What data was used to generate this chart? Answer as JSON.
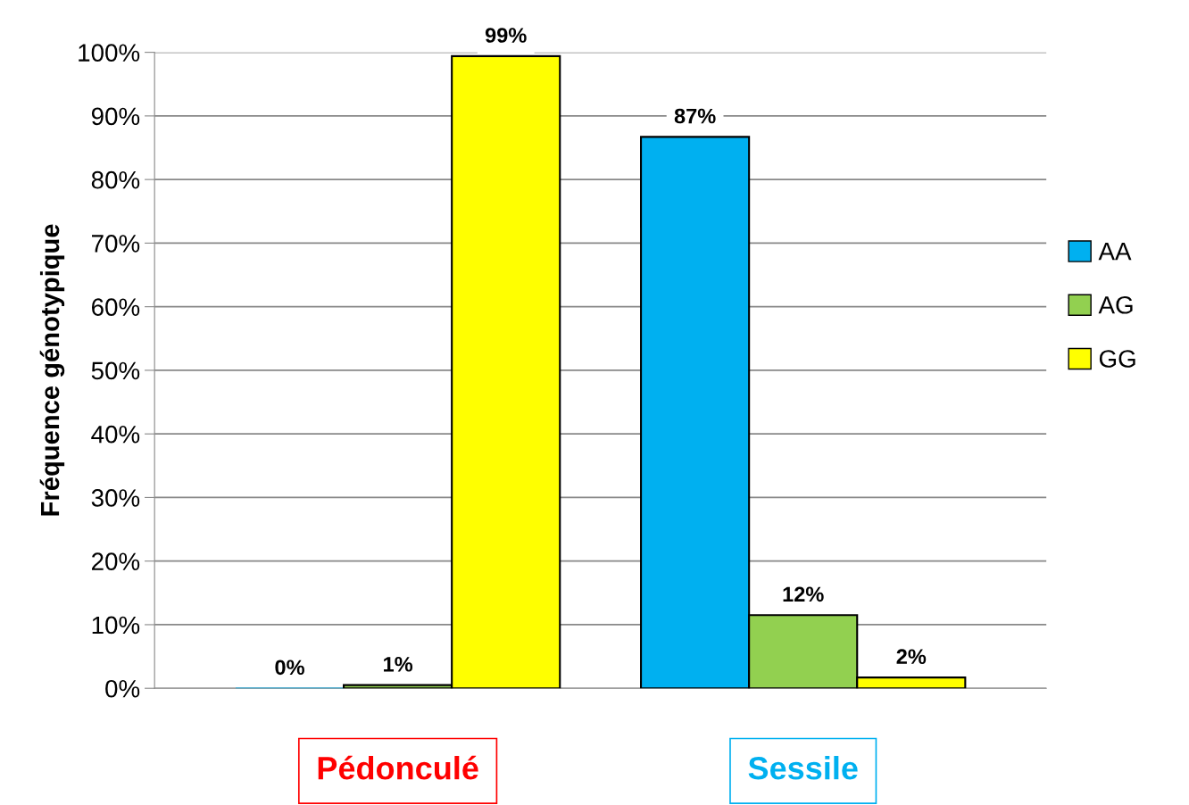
{
  "chart_data": {
    "type": "bar",
    "ylabel": "Fréquence génotypique",
    "categories": [
      "Pédonculé",
      "Sessile"
    ],
    "series": [
      {
        "name": "AA",
        "color": "#00b0f0",
        "values": [
          0,
          86.7
        ],
        "value_labels": [
          "0%",
          "87%"
        ]
      },
      {
        "name": "AG",
        "color": "#92d050",
        "values": [
          0.5,
          11.5
        ],
        "value_labels": [
          "1%",
          "12%"
        ]
      },
      {
        "name": "GG",
        "color": "#ffff00",
        "values": [
          99.4,
          1.7
        ],
        "value_labels": [
          "99%",
          "2%"
        ]
      }
    ],
    "ylim": [
      0,
      100
    ],
    "yticks": [
      {
        "value": 0,
        "label": "0%"
      },
      {
        "value": 10,
        "label": "10%"
      },
      {
        "value": 20,
        "label": "20%"
      },
      {
        "value": 30,
        "label": "30%"
      },
      {
        "value": 40,
        "label": "40%"
      },
      {
        "value": 50,
        "label": "50%"
      },
      {
        "value": 60,
        "label": "60%"
      },
      {
        "value": 70,
        "label": "70%"
      },
      {
        "value": 80,
        "label": "80%"
      },
      {
        "value": 90,
        "label": "90%"
      },
      {
        "value": 100,
        "label": "100%"
      }
    ],
    "grid": "y",
    "legend": "right"
  }
}
